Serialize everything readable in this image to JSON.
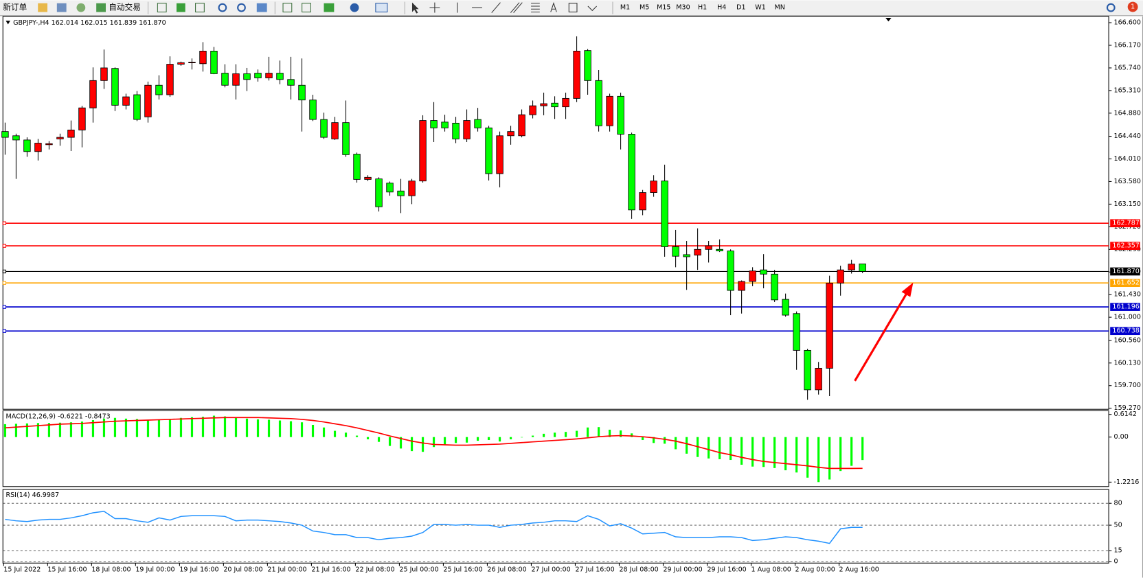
{
  "toolbar": {
    "new_order": "新订单",
    "auto_trading": "自动交易",
    "periods": [
      "M1",
      "M5",
      "M15",
      "M30",
      "H1",
      "H4",
      "D1",
      "W1",
      "MN"
    ],
    "alert_count": 1
  },
  "chart_data": [
    {
      "type": "candlestick",
      "title": "GBPJPY-,H4  162.014 162.015 161.839 161.870",
      "categories": [
        "15 Jul 2022",
        null,
        null,
        null,
        "15 Jul 16:00",
        null,
        null,
        null,
        "18 Jul 08:00",
        null,
        null,
        null,
        "19 Jul 00:00",
        null,
        null,
        null,
        "19 Jul 16:00",
        null,
        null,
        null,
        "20 Jul 08:00",
        null,
        null,
        null,
        "21 Jul 00:00",
        null,
        null,
        null,
        "21 Jul 16:00",
        null,
        null,
        null,
        "22 Jul 08:00",
        null,
        null,
        null,
        "25 Jul 00:00",
        null,
        null,
        null,
        "25 Jul 16:00",
        null,
        null,
        null,
        "26 Jul 08:00",
        null,
        null,
        null,
        "27 Jul 00:00",
        null,
        null,
        null,
        "27 Jul 16:00",
        null,
        null,
        null,
        "28 Jul 08:00",
        null,
        null,
        null,
        "29 Jul 00:00",
        null,
        null,
        null,
        "29 Jul 16:00",
        null,
        null,
        null,
        "1 Aug 08:00",
        null,
        null,
        null,
        "2 Aug 00:00",
        null,
        null,
        null,
        "2 Aug 16:00",
        null,
        null
      ],
      "open": [
        164.53,
        164.45,
        164.37,
        164.15,
        164.28,
        164.39,
        164.42,
        164.56,
        164.98,
        165.5,
        165.73,
        165.03,
        165.23,
        164.81,
        165.41,
        165.23,
        165.81,
        165.84,
        165.82,
        166.06,
        165.64,
        165.41,
        165.63,
        165.64,
        165.55,
        165.64,
        165.52,
        165.41,
        165.13,
        164.76,
        164.39,
        164.7,
        164.1,
        163.62,
        163.63,
        163.55,
        163.4,
        163.31,
        163.59,
        164.74,
        164.71,
        164.69,
        164.39,
        164.76,
        164.6,
        163.73,
        164.45,
        164.45,
        164.85,
        165.02,
        165.07,
        165.0,
        165.16,
        166.07,
        165.5,
        164.64,
        165.2,
        164.48,
        163.04,
        163.37,
        163.59,
        162.34,
        162.19,
        162.18,
        162.29,
        162.29,
        162.26,
        161.51,
        161.68,
        161.9,
        161.82,
        161.34,
        161.07,
        160.37,
        159.62,
        160.03,
        161.65,
        161.9,
        162.014
      ],
      "high": [
        164.7,
        164.49,
        164.42,
        164.39,
        164.35,
        164.49,
        164.74,
        165.02,
        165.75,
        166.09,
        165.75,
        165.25,
        165.3,
        165.48,
        165.6,
        165.96,
        165.86,
        165.92,
        166.23,
        166.14,
        165.81,
        165.81,
        165.74,
        165.71,
        165.95,
        165.88,
        165.95,
        165.92,
        165.23,
        164.89,
        164.81,
        165.12,
        164.13,
        163.7,
        163.66,
        163.58,
        163.63,
        163.63,
        164.84,
        165.09,
        164.85,
        164.81,
        164.95,
        164.98,
        164.64,
        164.53,
        164.64,
        164.95,
        165.12,
        165.27,
        165.2,
        165.27,
        166.34,
        166.1,
        165.7,
        165.25,
        165.27,
        164.51,
        163.42,
        163.7,
        163.9,
        162.66,
        162.45,
        162.69,
        162.45,
        162.48,
        162.29,
        161.7,
        161.95,
        162.2,
        161.9,
        161.45,
        161.11,
        160.4,
        160.15,
        161.79,
        161.98,
        162.09,
        162.015
      ],
      "low": [
        164.09,
        163.63,
        164.05,
        163.98,
        164.19,
        164.26,
        164.16,
        164.23,
        164.7,
        165.34,
        164.92,
        164.95,
        164.73,
        164.7,
        165.14,
        165.19,
        165.78,
        165.71,
        165.67,
        165.62,
        165.37,
        165.14,
        165.3,
        165.48,
        165.5,
        165.43,
        165.14,
        164.53,
        164.73,
        164.39,
        164.37,
        164.05,
        163.56,
        163.59,
        163.01,
        163.31,
        162.98,
        163.15,
        163.56,
        164.33,
        164.53,
        164.31,
        164.33,
        164.53,
        163.6,
        163.47,
        164.28,
        164.42,
        164.78,
        164.84,
        164.77,
        164.77,
        165.09,
        165.23,
        164.53,
        164.53,
        164.19,
        162.87,
        162.94,
        163.29,
        162.15,
        161.95,
        161.52,
        161.9,
        162.04,
        162.24,
        161.04,
        161.07,
        161.59,
        161.55,
        161.29,
        161.01,
        160.0,
        159.43,
        159.53,
        159.5,
        161.41,
        161.83,
        161.839
      ],
      "close": [
        164.42,
        164.37,
        164.15,
        164.31,
        164.3,
        164.42,
        164.56,
        164.98,
        165.5,
        165.74,
        165.03,
        165.19,
        164.76,
        165.41,
        165.23,
        165.81,
        165.84,
        165.85,
        166.06,
        165.63,
        165.41,
        165.63,
        165.52,
        165.55,
        165.64,
        165.52,
        165.41,
        165.13,
        164.76,
        164.42,
        164.7,
        164.09,
        163.62,
        163.66,
        163.1,
        163.38,
        163.31,
        163.59,
        164.74,
        164.6,
        164.6,
        164.39,
        164.74,
        164.6,
        163.73,
        164.45,
        164.53,
        164.85,
        165.02,
        165.06,
        165.0,
        165.16,
        166.06,
        165.5,
        164.64,
        165.2,
        164.48,
        163.04,
        163.37,
        163.59,
        162.34,
        162.16,
        162.15,
        162.29,
        162.36,
        162.26,
        161.51,
        161.68,
        161.88,
        161.82,
        161.33,
        161.04,
        160.37,
        159.62,
        160.03,
        161.65,
        161.9,
        162.01,
        161.87
      ],
      "up_color": "#ff0000",
      "down_color": "#00ff00",
      "ylim": [
        159.25,
        166.72
      ],
      "yticks": [
        {
          "value": 166.6,
          "label": "166.600"
        },
        {
          "value": 166.17,
          "label": "166.170"
        },
        {
          "value": 165.74,
          "label": "165.740"
        },
        {
          "value": 165.31,
          "label": "165.310"
        },
        {
          "value": 164.88,
          "label": "164.880"
        },
        {
          "value": 164.44,
          "label": "164.440"
        },
        {
          "value": 164.01,
          "label": "164.010"
        },
        {
          "value": 163.58,
          "label": "163.580"
        },
        {
          "value": 163.15,
          "label": "163.150"
        },
        {
          "value": 162.72,
          "label": "162.720"
        },
        {
          "value": 162.29,
          "label": "162.290"
        },
        {
          "value": 161.86,
          "label": "161.860"
        },
        {
          "value": 161.43,
          "label": "161.430"
        },
        {
          "value": 161,
          "label": "161.000"
        },
        {
          "value": 160.56,
          "label": "160.560"
        },
        {
          "value": 160.13,
          "label": "160.130"
        },
        {
          "value": 159.7,
          "label": "159.700"
        },
        {
          "value": 159.27,
          "label": "159.270"
        }
      ],
      "hlines": [
        {
          "value": 162.787,
          "color": "#ff0000"
        },
        {
          "value": 162.357,
          "color": "#ff0000"
        },
        {
          "value": 161.87,
          "label": "161.870",
          "color": "#000000"
        },
        {
          "value": 161.652,
          "color": "#ffa500"
        },
        {
          "value": 161.196,
          "color": "#0000cd"
        },
        {
          "value": 160.738,
          "color": "#0000cd"
        }
      ]
    },
    {
      "type": "macd",
      "title": "MACD(12,26,9) -0.6221 -0.8473",
      "values": [
        0.35,
        0.36,
        0.37,
        0.38,
        0.38,
        0.39,
        0.4,
        0.42,
        0.46,
        0.5,
        0.52,
        0.5,
        0.49,
        0.47,
        0.48,
        0.47,
        0.52,
        0.54,
        0.55,
        0.58,
        0.56,
        0.52,
        0.5,
        0.48,
        0.47,
        0.45,
        0.43,
        0.4,
        0.33,
        0.26,
        0.17,
        0.12,
        0.04,
        -0.06,
        -0.13,
        -0.24,
        -0.31,
        -0.38,
        -0.4,
        -0.27,
        -0.2,
        -0.16,
        -0.15,
        -0.1,
        -0.08,
        -0.12,
        -0.06,
        -0.01,
        0.04,
        0.09,
        0.12,
        0.14,
        0.17,
        0.26,
        0.27,
        0.2,
        0.18,
        0.1,
        -0.08,
        -0.16,
        -0.18,
        -0.33,
        -0.45,
        -0.54,
        -0.58,
        -0.6,
        -0.62,
        -0.75,
        -0.8,
        -0.81,
        -0.84,
        -0.9,
        -0.96,
        -1.1,
        -1.22,
        -1.15,
        -0.92,
        -0.78,
        -0.6221
      ],
      "signal": [
        0.25,
        0.27,
        0.29,
        0.31,
        0.33,
        0.35,
        0.36,
        0.37,
        0.39,
        0.41,
        0.43,
        0.44,
        0.45,
        0.46,
        0.47,
        0.48,
        0.49,
        0.5,
        0.51,
        0.52,
        0.53,
        0.53,
        0.53,
        0.53,
        0.52,
        0.51,
        0.5,
        0.48,
        0.45,
        0.41,
        0.36,
        0.31,
        0.25,
        0.18,
        0.11,
        0.03,
        -0.04,
        -0.11,
        -0.16,
        -0.2,
        -0.21,
        -0.22,
        -0.22,
        -0.21,
        -0.2,
        -0.19,
        -0.17,
        -0.15,
        -0.13,
        -0.11,
        -0.09,
        -0.07,
        -0.05,
        -0.02,
        0.01,
        0.03,
        0.04,
        0.03,
        0.01,
        -0.02,
        -0.06,
        -0.11,
        -0.18,
        -0.26,
        -0.34,
        -0.42,
        -0.48,
        -0.55,
        -0.61,
        -0.66,
        -0.69,
        -0.72,
        -0.75,
        -0.78,
        -0.82,
        -0.85,
        -0.85,
        -0.85,
        -0.8473
      ],
      "color": "#00ff00",
      "signal_color": "#ff0000",
      "ylim": [
        -1.341,
        0.714
      ],
      "yticks": [
        0.6142,
        {
          "value": 0,
          "label": "0.00"
        },
        -1.2216
      ]
    },
    {
      "type": "line",
      "title": "RSI(14) 46.9987",
      "values": [
        58,
        56,
        55,
        57,
        58,
        58,
        60,
        63,
        67,
        69,
        59,
        59,
        56,
        54,
        60,
        57,
        62,
        63,
        63,
        63,
        62,
        56,
        57,
        57,
        56,
        55,
        53,
        50,
        42,
        40,
        37,
        37,
        33,
        33,
        30,
        32,
        33,
        35,
        40,
        51,
        51,
        50,
        51,
        50,
        50,
        47,
        50,
        51,
        53,
        54,
        56,
        56,
        55,
        63,
        58,
        49,
        52,
        46,
        38,
        39,
        40,
        34,
        33,
        33,
        33,
        34,
        34,
        33,
        29,
        30,
        32,
        34,
        33,
        30,
        28,
        25,
        45,
        47,
        46.9987
      ],
      "color": "#1e90ff",
      "ylim": [
        -2,
        99
      ],
      "yticks": [
        80,
        50,
        15,
        0
      ],
      "grid": "dashed"
    }
  ]
}
